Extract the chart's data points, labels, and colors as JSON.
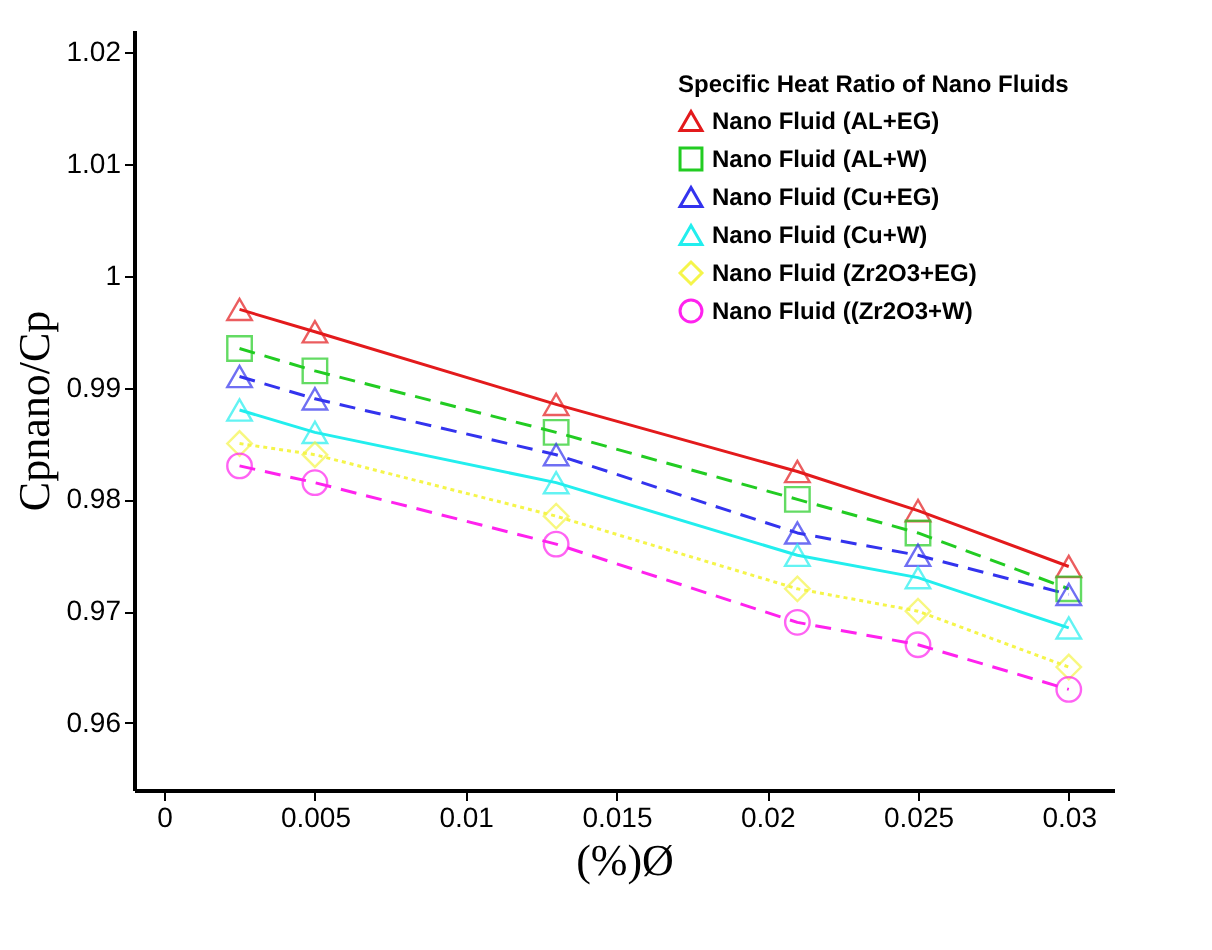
{
  "chart_data": {
    "type": "line",
    "xlabel": "(%)Ø",
    "ylabel": "Cpnano/Cp",
    "legend_title": "Specific Heat Ratio of Nano Fluids",
    "legend": "top right",
    "grid": false,
    "x": [
      0.0025,
      0.005,
      0.013,
      0.021,
      0.025,
      0.03
    ],
    "xlim": [
      -0.001,
      0.0315
    ],
    "xticks": [
      0,
      0.005,
      0.01,
      0.015,
      0.02,
      0.025,
      0.03
    ],
    "ylim": [
      0.954,
      1.022
    ],
    "yticks": [
      0.96,
      0.97,
      0.98,
      0.99,
      1,
      1.01,
      1.02
    ],
    "series": [
      {
        "name": "Nano Fluid (AL+EG)",
        "color": "#e31a1c",
        "marker": "triangle",
        "line_style": "solid",
        "values": [
          0.997,
          0.995,
          0.9885,
          0.9825,
          0.979,
          0.974
        ]
      },
      {
        "name": "Nano Fluid (AL+W)",
        "color": "#22cc22",
        "marker": "square",
        "line_style": "dashed",
        "values": [
          0.9935,
          0.9915,
          0.986,
          0.98,
          0.977,
          0.972
        ]
      },
      {
        "name": "Nano Fluid (Cu+EG)",
        "color": "#3333ee",
        "marker": "triangle",
        "line_style": "dashed",
        "values": [
          0.991,
          0.989,
          0.984,
          0.977,
          0.975,
          0.9715
        ]
      },
      {
        "name": "Nano Fluid (Cu+W)",
        "color": "#22eeee",
        "marker": "triangle",
        "line_style": "solid",
        "values": [
          0.988,
          0.986,
          0.9815,
          0.975,
          0.973,
          0.9685
        ]
      },
      {
        "name": "Nano Fluid (Zr2O3+EG)",
        "color": "#f5f54a",
        "marker": "diamond",
        "line_style": "dotted",
        "values": [
          0.985,
          0.984,
          0.9785,
          0.972,
          0.97,
          0.965
        ]
      },
      {
        "name": "Nano Fluid ((Zr2O3+W)",
        "color": "#ff22ee",
        "marker": "circle",
        "line_style": "dashed",
        "values": [
          0.983,
          0.9815,
          0.976,
          0.969,
          0.967,
          0.963
        ]
      }
    ]
  }
}
